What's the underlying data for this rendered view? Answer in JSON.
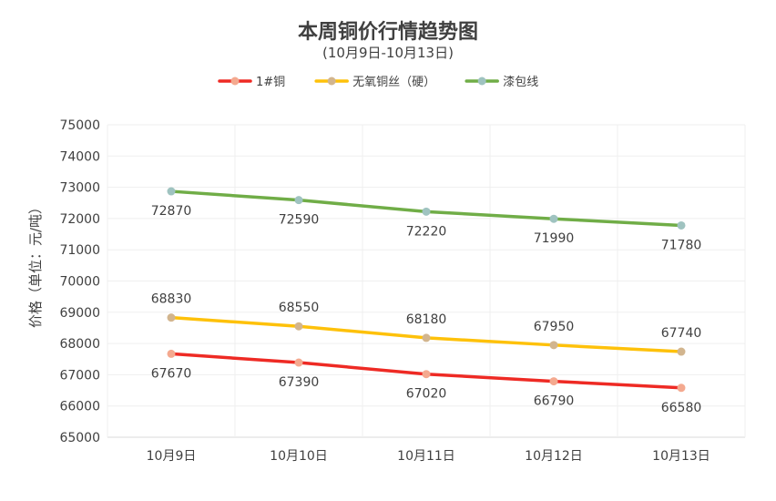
{
  "chart_data": {
    "type": "line",
    "title": "本周铜价行情趋势图",
    "subtitle": "(10月9日-10月13日)",
    "ylabel": "价格（单位：元/吨）",
    "xlabel": "",
    "categories": [
      "10月9日",
      "10月10日",
      "10月11日",
      "10月12日",
      "10月13日"
    ],
    "ylim": [
      65000,
      75000
    ],
    "ytick_step": 1000,
    "grid": true,
    "legend_position": "top",
    "series": [
      {
        "name": "1#铜",
        "values": [
          67670,
          67390,
          67020,
          66790,
          66580
        ],
        "color": "#ee2a24",
        "marker_color": "#f4a98f",
        "label_position": "below"
      },
      {
        "name": "无氧铜丝（硬）",
        "values": [
          68830,
          68550,
          68180,
          67950,
          67740
        ],
        "color": "#fec10a",
        "marker_color": "#d2b58e",
        "label_position": "above"
      },
      {
        "name": "漆包线",
        "values": [
          72870,
          72590,
          72220,
          71990,
          71780
        ],
        "color": "#70ad47",
        "marker_color": "#9fc3c0",
        "label_position": "below"
      }
    ]
  }
}
